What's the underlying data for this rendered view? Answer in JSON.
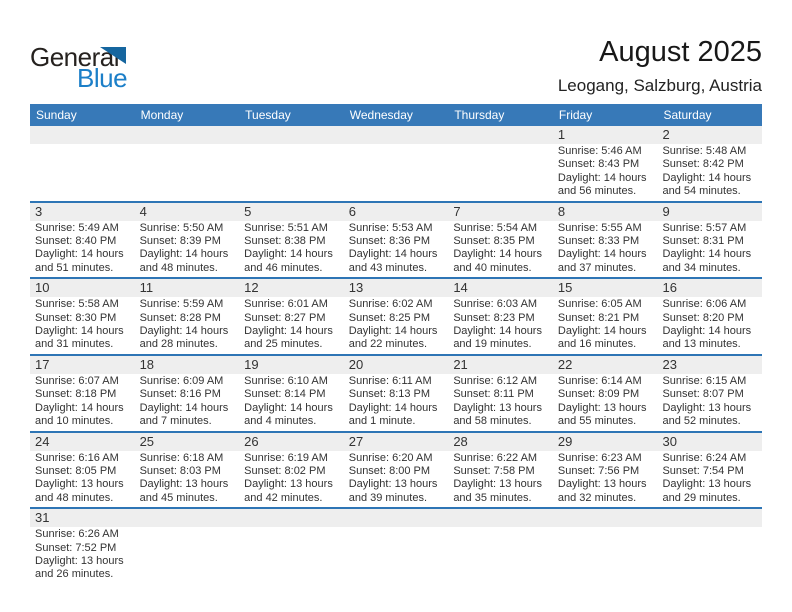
{
  "logo": {
    "part1": "General",
    "part2": "Blue"
  },
  "header": {
    "title": "August 2025",
    "subtitle": "Leogang, Salzburg, Austria"
  },
  "colors": {
    "weekday_header_bg": "#3779b8",
    "week_separator": "#2e75b5",
    "day_number_band_bg": "#eeeeee",
    "logo_blue": "#1c7fc8",
    "logo_triangle_blue": "#16669f",
    "text_dark": "#333333"
  },
  "calendar": {
    "weekdays": [
      "Sunday",
      "Monday",
      "Tuesday",
      "Wednesday",
      "Thursday",
      "Friday",
      "Saturday"
    ],
    "weeks": [
      [
        null,
        null,
        null,
        null,
        null,
        {
          "day": "1",
          "lines": [
            "Sunrise: 5:46 AM",
            "Sunset: 8:43 PM",
            "Daylight: 14 hours",
            "and 56 minutes."
          ]
        },
        {
          "day": "2",
          "lines": [
            "Sunrise: 5:48 AM",
            "Sunset: 8:42 PM",
            "Daylight: 14 hours",
            "and 54 minutes."
          ]
        }
      ],
      [
        {
          "day": "3",
          "lines": [
            "Sunrise: 5:49 AM",
            "Sunset: 8:40 PM",
            "Daylight: 14 hours",
            "and 51 minutes."
          ]
        },
        {
          "day": "4",
          "lines": [
            "Sunrise: 5:50 AM",
            "Sunset: 8:39 PM",
            "Daylight: 14 hours",
            "and 48 minutes."
          ]
        },
        {
          "day": "5",
          "lines": [
            "Sunrise: 5:51 AM",
            "Sunset: 8:38 PM",
            "Daylight: 14 hours",
            "and 46 minutes."
          ]
        },
        {
          "day": "6",
          "lines": [
            "Sunrise: 5:53 AM",
            "Sunset: 8:36 PM",
            "Daylight: 14 hours",
            "and 43 minutes."
          ]
        },
        {
          "day": "7",
          "lines": [
            "Sunrise: 5:54 AM",
            "Sunset: 8:35 PM",
            "Daylight: 14 hours",
            "and 40 minutes."
          ]
        },
        {
          "day": "8",
          "lines": [
            "Sunrise: 5:55 AM",
            "Sunset: 8:33 PM",
            "Daylight: 14 hours",
            "and 37 minutes."
          ]
        },
        {
          "day": "9",
          "lines": [
            "Sunrise: 5:57 AM",
            "Sunset: 8:31 PM",
            "Daylight: 14 hours",
            "and 34 minutes."
          ]
        }
      ],
      [
        {
          "day": "10",
          "lines": [
            "Sunrise: 5:58 AM",
            "Sunset: 8:30 PM",
            "Daylight: 14 hours",
            "and 31 minutes."
          ]
        },
        {
          "day": "11",
          "lines": [
            "Sunrise: 5:59 AM",
            "Sunset: 8:28 PM",
            "Daylight: 14 hours",
            "and 28 minutes."
          ]
        },
        {
          "day": "12",
          "lines": [
            "Sunrise: 6:01 AM",
            "Sunset: 8:27 PM",
            "Daylight: 14 hours",
            "and 25 minutes."
          ]
        },
        {
          "day": "13",
          "lines": [
            "Sunrise: 6:02 AM",
            "Sunset: 8:25 PM",
            "Daylight: 14 hours",
            "and 22 minutes."
          ]
        },
        {
          "day": "14",
          "lines": [
            "Sunrise: 6:03 AM",
            "Sunset: 8:23 PM",
            "Daylight: 14 hours",
            "and 19 minutes."
          ]
        },
        {
          "day": "15",
          "lines": [
            "Sunrise: 6:05 AM",
            "Sunset: 8:21 PM",
            "Daylight: 14 hours",
            "and 16 minutes."
          ]
        },
        {
          "day": "16",
          "lines": [
            "Sunrise: 6:06 AM",
            "Sunset: 8:20 PM",
            "Daylight: 14 hours",
            "and 13 minutes."
          ]
        }
      ],
      [
        {
          "day": "17",
          "lines": [
            "Sunrise: 6:07 AM",
            "Sunset: 8:18 PM",
            "Daylight: 14 hours",
            "and 10 minutes."
          ]
        },
        {
          "day": "18",
          "lines": [
            "Sunrise: 6:09 AM",
            "Sunset: 8:16 PM",
            "Daylight: 14 hours",
            "and 7 minutes."
          ]
        },
        {
          "day": "19",
          "lines": [
            "Sunrise: 6:10 AM",
            "Sunset: 8:14 PM",
            "Daylight: 14 hours",
            "and 4 minutes."
          ]
        },
        {
          "day": "20",
          "lines": [
            "Sunrise: 6:11 AM",
            "Sunset: 8:13 PM",
            "Daylight: 14 hours",
            "and 1 minute."
          ]
        },
        {
          "day": "21",
          "lines": [
            "Sunrise: 6:12 AM",
            "Sunset: 8:11 PM",
            "Daylight: 13 hours",
            "and 58 minutes."
          ]
        },
        {
          "day": "22",
          "lines": [
            "Sunrise: 6:14 AM",
            "Sunset: 8:09 PM",
            "Daylight: 13 hours",
            "and 55 minutes."
          ]
        },
        {
          "day": "23",
          "lines": [
            "Sunrise: 6:15 AM",
            "Sunset: 8:07 PM",
            "Daylight: 13 hours",
            "and 52 minutes."
          ]
        }
      ],
      [
        {
          "day": "24",
          "lines": [
            "Sunrise: 6:16 AM",
            "Sunset: 8:05 PM",
            "Daylight: 13 hours",
            "and 48 minutes."
          ]
        },
        {
          "day": "25",
          "lines": [
            "Sunrise: 6:18 AM",
            "Sunset: 8:03 PM",
            "Daylight: 13 hours",
            "and 45 minutes."
          ]
        },
        {
          "day": "26",
          "lines": [
            "Sunrise: 6:19 AM",
            "Sunset: 8:02 PM",
            "Daylight: 13 hours",
            "and 42 minutes."
          ]
        },
        {
          "day": "27",
          "lines": [
            "Sunrise: 6:20 AM",
            "Sunset: 8:00 PM",
            "Daylight: 13 hours",
            "and 39 minutes."
          ]
        },
        {
          "day": "28",
          "lines": [
            "Sunrise: 6:22 AM",
            "Sunset: 7:58 PM",
            "Daylight: 13 hours",
            "and 35 minutes."
          ]
        },
        {
          "day": "29",
          "lines": [
            "Sunrise: 6:23 AM",
            "Sunset: 7:56 PM",
            "Daylight: 13 hours",
            "and 32 minutes."
          ]
        },
        {
          "day": "30",
          "lines": [
            "Sunrise: 6:24 AM",
            "Sunset: 7:54 PM",
            "Daylight: 13 hours",
            "and 29 minutes."
          ]
        }
      ],
      [
        {
          "day": "31",
          "lines": [
            "Sunrise: 6:26 AM",
            "Sunset: 7:52 PM",
            "Daylight: 13 hours",
            "and 26 minutes."
          ]
        },
        null,
        null,
        null,
        null,
        null,
        null
      ]
    ]
  }
}
